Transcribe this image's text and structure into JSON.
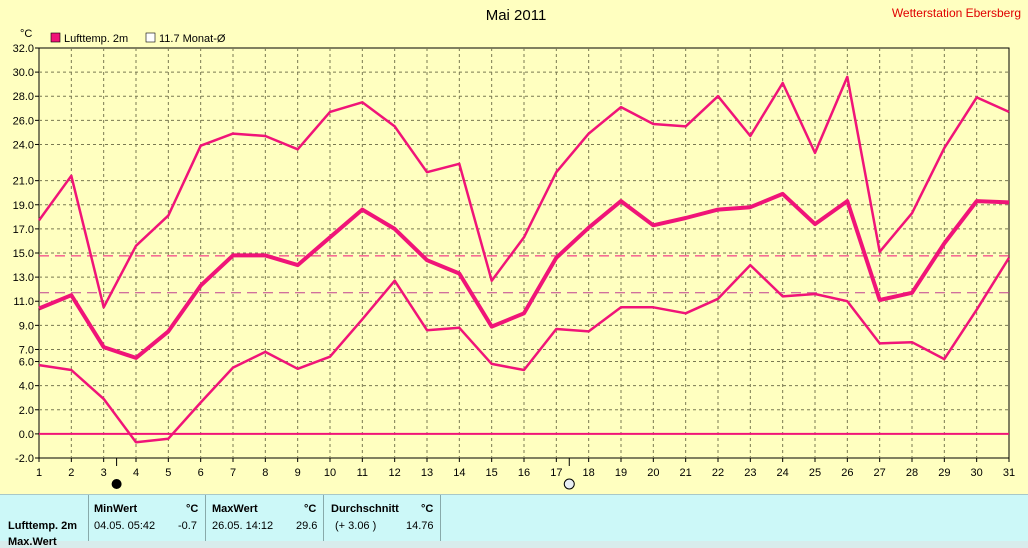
{
  "title": "Mai 2011",
  "station": "Wetterstation Ebersberg",
  "legend": {
    "series_label": "Lufttemp. 2m",
    "avg_label": "11.7 Monat-Ø"
  },
  "colors": {
    "background": "#ffffc0",
    "series": "#f01478",
    "grid": "#7a7a52",
    "station_text": "#e00000",
    "table_bg": "#ccf8f8"
  },
  "moon_markers": [
    {
      "day": 3.4,
      "icon": "new-moon-icon"
    },
    {
      "day": 17.4,
      "icon": "full-moon-icon"
    }
  ],
  "chart_data": {
    "type": "line",
    "title": "Mai 2011",
    "ylabel": "°C",
    "xlabel": "",
    "x": [
      1,
      2,
      3,
      4,
      5,
      6,
      7,
      8,
      9,
      10,
      11,
      12,
      13,
      14,
      15,
      16,
      17,
      18,
      19,
      20,
      21,
      22,
      23,
      24,
      25,
      26,
      27,
      28,
      29,
      30,
      31
    ],
    "ylim": [
      -2,
      32
    ],
    "yticks": [
      -2.0,
      0.0,
      2.0,
      4.0,
      6.0,
      7.0,
      9.0,
      11.0,
      13.0,
      15.0,
      17.0,
      19.0,
      21.0,
      24.0,
      26.0,
      28.0,
      30.0,
      32.0
    ],
    "series": [
      {
        "role": "max",
        "values": [
          17.7,
          21.4,
          10.5,
          15.6,
          18.1,
          23.9,
          24.9,
          24.7,
          23.6,
          26.7,
          27.5,
          25.5,
          21.7,
          22.4,
          12.7,
          16.3,
          21.7,
          24.9,
          27.1,
          25.7,
          25.5,
          28.0,
          24.7,
          29.1,
          23.3,
          29.6,
          15.1,
          18.3,
          23.7,
          27.9,
          26.7
        ]
      },
      {
        "role": "mean",
        "name": "Lufttemp. 2m",
        "values": [
          10.4,
          11.5,
          7.2,
          6.3,
          8.5,
          12.3,
          14.8,
          14.8,
          14.0,
          16.3,
          18.6,
          17.0,
          14.4,
          13.3,
          8.9,
          10.0,
          14.6,
          17.1,
          19.3,
          17.3,
          17.9,
          18.6,
          18.8,
          19.9,
          17.4,
          19.3,
          11.1,
          11.7,
          15.8,
          19.3,
          19.2
        ]
      },
      {
        "role": "min",
        "values": [
          5.7,
          5.3,
          2.9,
          -0.7,
          -0.4,
          2.6,
          5.5,
          6.8,
          5.4,
          6.4,
          9.5,
          12.7,
          8.6,
          8.8,
          5.8,
          5.3,
          8.7,
          8.5,
          10.5,
          10.5,
          10.0,
          11.2,
          14.0,
          11.4,
          11.6,
          11.0,
          7.5,
          7.6,
          6.2,
          10.3,
          14.6
        ]
      }
    ],
    "reference_lines": [
      14.76,
      11.7,
      0.0
    ],
    "grid": true,
    "legend_position": "top-left"
  },
  "table": {
    "headers": {
      "min": "MinWert",
      "unit": "°C",
      "max": "MaxWert",
      "avg": "Durchschnitt"
    },
    "rows": [
      {
        "label": "Lufttemp. 2m",
        "min_time": "04.05.  05:42",
        "min_val": "-0.7",
        "max_time": "26.05.  14:12",
        "max_val": "29.6",
        "avg_diff": "(+ 3.06 )",
        "avg_val": "14.76"
      }
    ],
    "next_row_label": "Max.Wert"
  }
}
